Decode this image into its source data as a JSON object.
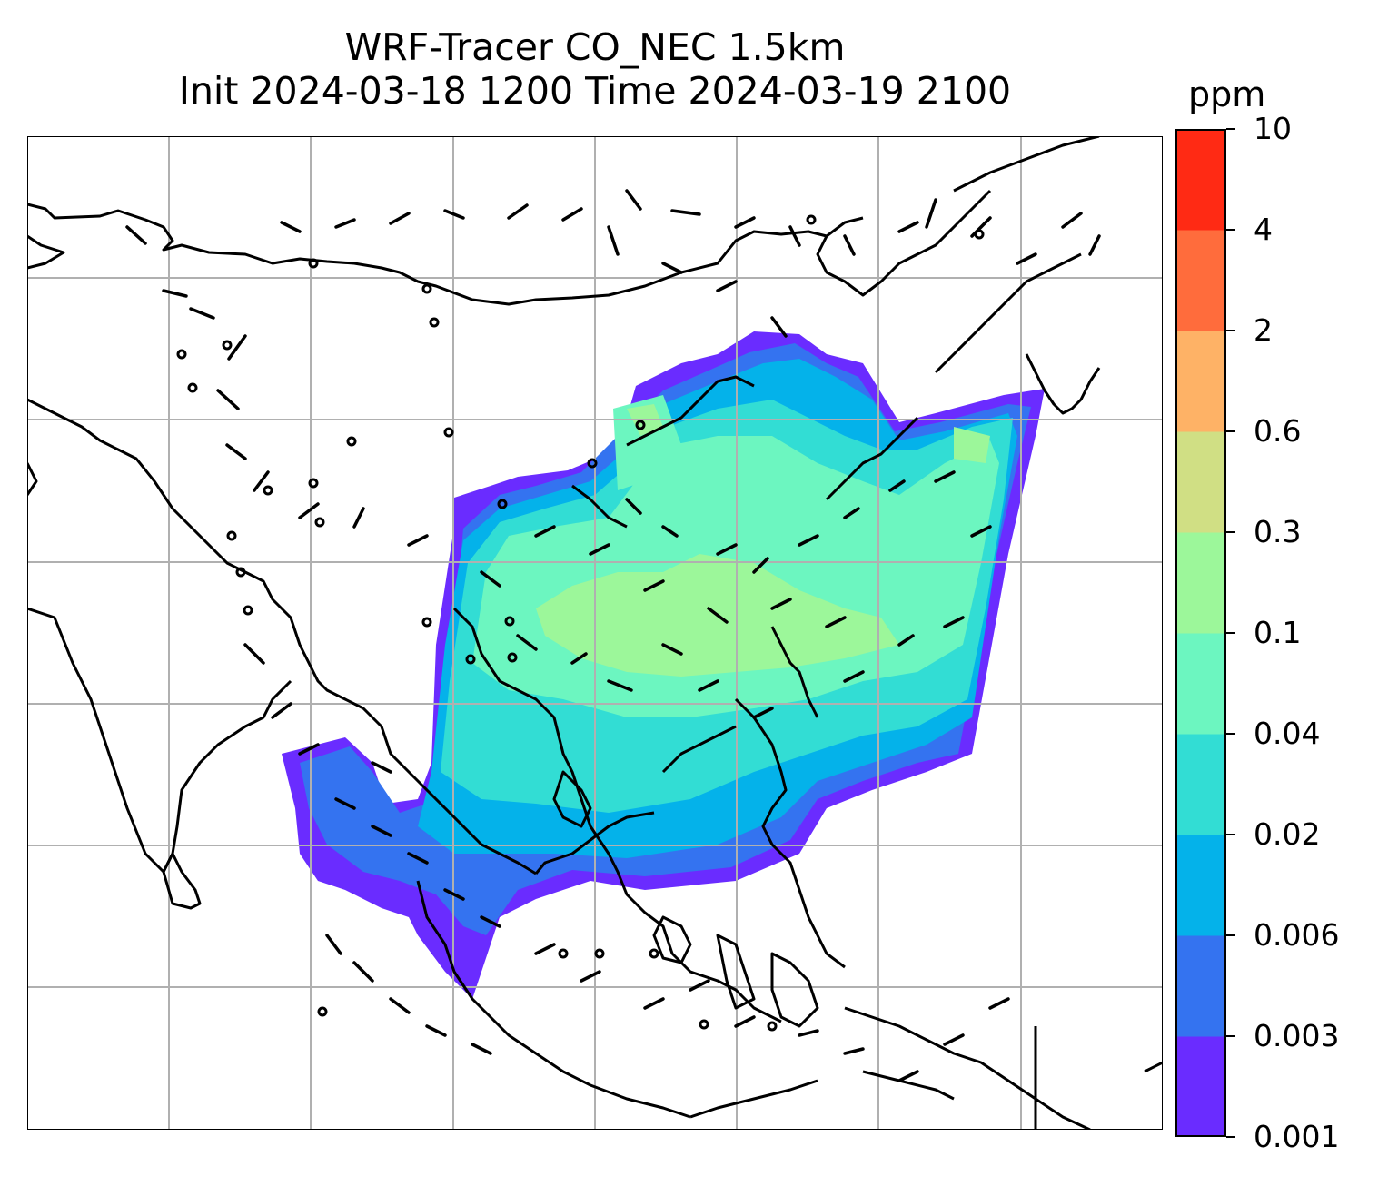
{
  "title": {
    "line1": "WRF-Tracer CO_NEC 1.5km",
    "line2": "Init 2024-03-18 1200 Time 2024-03-19 2100"
  },
  "colorbar": {
    "unit": "ppm",
    "levels": [
      "0.001",
      "0.003",
      "0.006",
      "0.02",
      "0.04",
      "0.1",
      "0.3",
      "0.6",
      "2",
      "4",
      "10"
    ],
    "colors": [
      "#6a2cff",
      "#3473f0",
      "#04b2ea",
      "#32ddd4",
      "#6cf6c0",
      "#9cf79a",
      "#d0df84",
      "#feb266",
      "#ff6c3c",
      "#ff2a14"
    ]
  },
  "map": {
    "land_outline_color": "#000000",
    "grid_color": "#b0b0b0",
    "barb_color": "#000000"
  }
}
